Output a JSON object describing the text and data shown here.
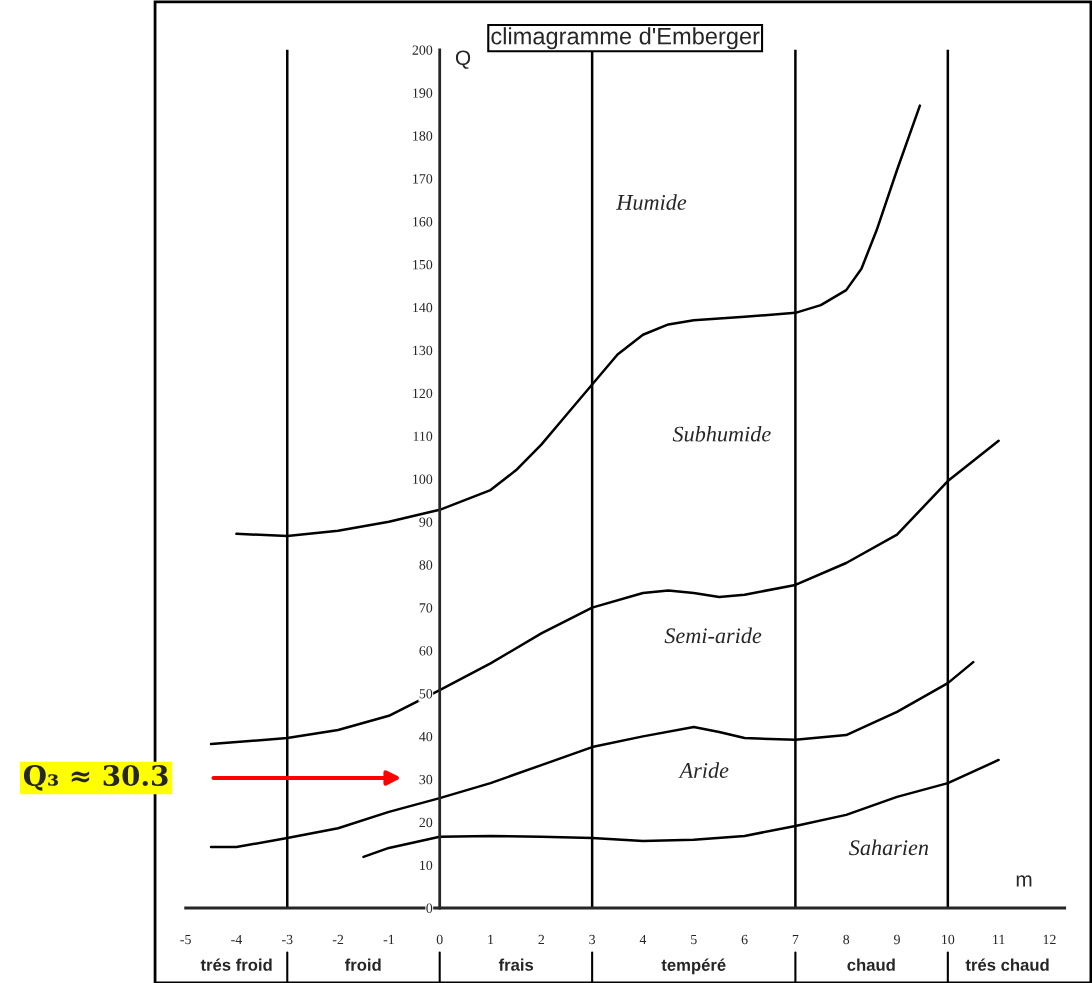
{
  "chart_data": {
    "type": "line",
    "title": "climagramme d'Emberger",
    "xlabel": "m",
    "ylabel": "Q",
    "xlim": [
      -5,
      12.3
    ],
    "ylim": [
      0,
      200
    ],
    "xticks": [
      -5,
      -4,
      -3,
      -2,
      -1,
      0,
      1,
      2,
      3,
      4,
      5,
      6,
      7,
      8,
      9,
      10,
      11,
      12
    ],
    "yticks": [
      0,
      10,
      20,
      30,
      40,
      50,
      60,
      70,
      80,
      90,
      100,
      110,
      120,
      130,
      140,
      150,
      160,
      170,
      180,
      190,
      200
    ],
    "series": [
      {
        "color": "#000000",
        "x": [
          -4,
          -3,
          -2,
          -1,
          0,
          1,
          1.5,
          2,
          2.5,
          3,
          3.5,
          4,
          4.5,
          5,
          6,
          7,
          7.5,
          8,
          8.3,
          8.6,
          9,
          9.45
        ],
        "values": [
          87.2,
          86.7,
          87.9,
          90,
          92.8,
          97.4,
          102,
          108,
          115,
          122,
          129,
          133.6,
          136,
          137,
          137.8,
          138.7,
          140.5,
          144,
          149,
          158,
          172,
          187
        ]
      },
      {
        "color": "#000000",
        "x": [
          -4.5,
          -3,
          -2,
          -1,
          0,
          1,
          2,
          3,
          4,
          4.5,
          5,
          5.5,
          6,
          7,
          8,
          9,
          10,
          11
        ],
        "values": [
          38.2,
          39.6,
          41.5,
          44.8,
          50.8,
          57,
          64,
          70,
          73.4,
          74,
          73.4,
          72.5,
          73,
          75.3,
          80.4,
          87,
          99.5,
          108.9
        ]
      },
      {
        "color": "#000000",
        "x": [
          -4.5,
          -4,
          -3,
          -2,
          -1,
          0,
          1,
          2,
          3,
          4,
          5,
          5.5,
          6,
          7,
          8,
          9,
          10,
          10.5
        ],
        "values": [
          14.2,
          14.2,
          16.3,
          18.6,
          22.4,
          25.6,
          29.1,
          33.3,
          37.5,
          40,
          42.2,
          41,
          39.6,
          39.2,
          40.3,
          45.7,
          52.4,
          57.3
        ]
      },
      {
        "color": "#000000",
        "x": [
          -1.5,
          -1,
          0,
          1,
          2,
          3,
          4,
          5,
          6,
          7,
          8,
          9,
          10,
          11
        ],
        "values": [
          11.9,
          14,
          16.6,
          16.8,
          16.6,
          16.3,
          15.6,
          15.9,
          16.8,
          19.1,
          21.7,
          25.9,
          29.1,
          34.5
        ]
      }
    ],
    "ref_lines": [
      {
        "axis": "x",
        "value": -3,
        "color": "#000000"
      },
      {
        "axis": "x",
        "value": 3,
        "color": "#000000"
      },
      {
        "axis": "x",
        "value": 7,
        "color": "#000000"
      },
      {
        "axis": "x",
        "value": 10,
        "color": "#000000"
      }
    ],
    "annotations": [
      "Humide",
      "Subhumide",
      "Semi-aride",
      "Aride",
      "Saharien",
      "Q₃ ≈ 30.3",
      "trés froid",
      "froid",
      "frais",
      "tempéré",
      "chaud",
      "trés chaud"
    ]
  }
}
